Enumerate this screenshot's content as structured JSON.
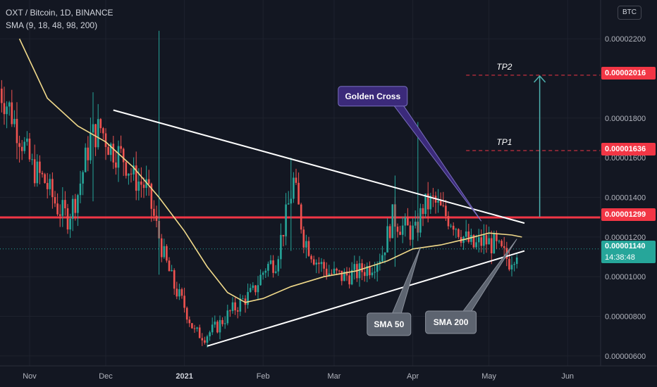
{
  "header": {
    "symbol_line": "OXT / Bitcoin, 1D, BINANCE",
    "indicator_line": "SMA (9, 18, 48, 98, 200)",
    "currency": "BTC"
  },
  "price_tags": {
    "tp2": "0.00002016",
    "tp1": "0.00001636",
    "resistance": "0.00001299",
    "last_price": "0.00001140",
    "countdown": "14:38:48"
  },
  "annotations": {
    "golden_cross": "Golden Cross",
    "sma50": "SMA 50",
    "sma200": "SMA 200",
    "tp1": "TP1",
    "tp2": "TP2"
  },
  "colors": {
    "background": "#131722",
    "up": "#26a69a",
    "down": "#ef5350",
    "sma": "#f0d98a",
    "resistance": "#f23645",
    "trendline": "#ffffff",
    "target_arrow": "#4fb3b0",
    "golden_cross_bg": "#3b2a7a",
    "callout_bg": "#5d6470"
  },
  "chart_data": {
    "type": "candlestick",
    "ylim": [
      5.5e-06,
      2.36e-05
    ],
    "y_ticks": [
      "0.00000600",
      "0.00000800",
      "0.00001000",
      "0.00001200",
      "0.00001400",
      "0.00001600",
      "0.00001800",
      "0.00002200"
    ],
    "y_tick_values": [
      6e-06,
      8e-06,
      1e-05,
      1.2e-05,
      1.4e-05,
      1.6e-05,
      1.8e-05,
      2.2e-05
    ],
    "x_ticks": [
      {
        "label": "Nov",
        "date": "2020-11-01"
      },
      {
        "label": "Dec",
        "date": "2020-12-01"
      },
      {
        "label": "2021",
        "date": "2021-01-01"
      },
      {
        "label": "Feb",
        "date": "2021-02-01"
      },
      {
        "label": "Mar",
        "date": "2021-03-01"
      },
      {
        "label": "Apr",
        "date": "2021-04-01"
      },
      {
        "label": "May",
        "date": "2021-05-01"
      },
      {
        "label": "Jun",
        "date": "2021-06-01"
      }
    ],
    "price_path": [
      [
        "2020-10-20",
        1.95e-05
      ],
      [
        "2020-10-24",
        1.85e-05
      ],
      [
        "2020-10-28",
        1.72e-05
      ],
      [
        "2020-11-02",
        1.55e-05
      ],
      [
        "2020-11-07",
        1.48e-05
      ],
      [
        "2020-11-12",
        1.35e-05
      ],
      [
        "2020-11-16",
        1.3e-05
      ],
      [
        "2020-11-20",
        1.42e-05
      ],
      [
        "2020-11-25",
        1.7e-05
      ],
      [
        "2020-11-29",
        1.75e-05
      ],
      [
        "2020-12-03",
        1.65e-05
      ],
      [
        "2020-12-08",
        1.6e-05
      ],
      [
        "2020-12-12",
        1.5e-05
      ],
      [
        "2020-12-17",
        1.45e-05
      ],
      [
        "2020-12-20",
        1.3e-05
      ],
      [
        "2020-12-24",
        1.1e-05
      ],
      [
        "2020-12-28",
        9.5e-06
      ],
      [
        "2021-01-01",
        8.5e-06
      ],
      [
        "2021-01-05",
        7.2e-06
      ],
      [
        "2021-01-09",
        7e-06
      ],
      [
        "2021-01-14",
        7.5e-06
      ],
      [
        "2021-01-19",
        8.2e-06
      ],
      [
        "2021-01-24",
        8.8e-06
      ],
      [
        "2021-01-28",
        9.2e-06
      ],
      [
        "2021-02-02",
        1.05e-05
      ],
      [
        "2021-02-06",
        1.08e-05
      ],
      [
        "2021-02-10",
        1.3e-05
      ],
      [
        "2021-02-13",
        1.48e-05
      ],
      [
        "2021-02-17",
        1.2e-05
      ],
      [
        "2021-02-22",
        1.08e-05
      ],
      [
        "2021-02-27",
        1.02e-05
      ],
      [
        "2021-03-04",
        1e-05
      ],
      [
        "2021-03-10",
        1.02e-05
      ],
      [
        "2021-03-15",
        1.05e-05
      ],
      [
        "2021-03-20",
        1.12e-05
      ],
      [
        "2021-03-24",
        1.3e-05
      ],
      [
        "2021-03-28",
        1.25e-05
      ],
      [
        "2021-04-02",
        1.22e-05
      ],
      [
        "2021-04-05",
        1.35e-05
      ],
      [
        "2021-04-09",
        1.38e-05
      ],
      [
        "2021-04-13",
        1.32e-05
      ],
      [
        "2021-04-17",
        1.28e-05
      ],
      [
        "2021-04-21",
        1.2e-05
      ],
      [
        "2021-04-25",
        1.15e-05
      ],
      [
        "2021-04-29",
        1.18e-05
      ],
      [
        "2021-05-03",
        1.16e-05
      ],
      [
        "2021-05-06",
        1.12e-05
      ],
      [
        "2021-05-09",
        1.08e-05
      ],
      [
        "2021-05-12",
        1.14e-05
      ]
    ],
    "spikes": [
      {
        "date": "2020-11-26",
        "high": 1.93e-05,
        "low": 1.38e-05
      },
      {
        "date": "2020-12-22",
        "high": 2.24e-05,
        "low": 1.01e-05
      },
      {
        "date": "2021-02-12",
        "high": 1.6e-05,
        "low": 1.13e-05
      },
      {
        "date": "2021-04-03",
        "high": 1.78e-05,
        "low": 1.18e-05
      },
      {
        "date": "2021-03-25",
        "high": 1.51e-05,
        "low": 1.05e-05
      }
    ],
    "sma_line": [
      [
        "2020-10-28",
        2.2e-05
      ],
      [
        "2020-11-08",
        1.9e-05
      ],
      [
        "2020-11-20",
        1.76e-05
      ],
      [
        "2020-12-01",
        1.68e-05
      ],
      [
        "2020-12-12",
        1.55e-05
      ],
      [
        "2020-12-22",
        1.4e-05
      ],
      [
        "2021-01-01",
        1.23e-05
      ],
      [
        "2021-01-10",
        1.05e-05
      ],
      [
        "2021-01-18",
        9.2e-06
      ],
      [
        "2021-01-25",
        8.7e-06
      ],
      [
        "2021-02-01",
        8.9e-06
      ],
      [
        "2021-02-12",
        9.5e-06
      ],
      [
        "2021-02-25",
        1e-05
      ],
      [
        "2021-03-10",
        1.03e-05
      ],
      [
        "2021-03-22",
        1.08e-05
      ],
      [
        "2021-04-01",
        1.14e-05
      ],
      [
        "2021-04-12",
        1.16e-05
      ],
      [
        "2021-04-22",
        1.19e-05
      ],
      [
        "2021-05-01",
        1.22e-05
      ],
      [
        "2021-05-10",
        1.21e-05
      ],
      [
        "2021-05-14",
        1.2e-05
      ]
    ],
    "trendlines": [
      {
        "name": "upper",
        "from": [
          "2020-12-04",
          1.84e-05
        ],
        "to": [
          "2021-05-15",
          1.27e-05
        ]
      },
      {
        "name": "lower",
        "from": [
          "2021-01-10",
          6.5e-06
        ],
        "to": [
          "2021-05-15",
          1.13e-05
        ]
      }
    ],
    "resistance": 1.299e-05,
    "tp1": 1.636e-05,
    "tp2": 2.016e-05,
    "last_price": 1.14e-05
  }
}
